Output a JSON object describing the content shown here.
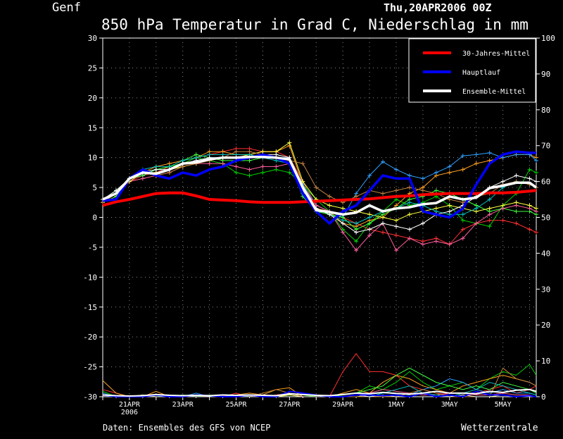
{
  "header": {
    "location": "Genf",
    "datetime": "Thu,20APR2006 00Z",
    "title": "850 hPa Temperatur in Grad C, Niederschlag in mm"
  },
  "footer": {
    "source": "Daten: Ensembles des GFS von NCEP",
    "brand": "Wetterzentrale"
  },
  "colors": {
    "background": "#000000",
    "axis": "#ffffff",
    "grid": "#8a8a8a",
    "climatology": "#ff0000",
    "main_run": "#0000ff",
    "ensemble_mean": "#ffffff",
    "members": [
      "#ff3030",
      "#00d000",
      "#ffa020",
      "#30a0ff",
      "#40ff40",
      "#ff60a0",
      "#ffff40",
      "#00c0c0",
      "#c08040",
      "#ffffff"
    ]
  },
  "chart_data": {
    "type": "line",
    "xlim": [
      20,
      36.25
    ],
    "ylim": [
      -30,
      30
    ],
    "y2lim": [
      0,
      100
    ],
    "yticks": [
      -30,
      -25,
      -20,
      -15,
      -10,
      -5,
      0,
      5,
      10,
      15,
      20,
      25,
      30
    ],
    "y2ticks": [
      0,
      10,
      20,
      30,
      40,
      50,
      60,
      70,
      80,
      90,
      100
    ],
    "xticks": [
      {
        "x": 21,
        "label": "21APR",
        "sub": "2006"
      },
      {
        "x": 23,
        "label": "23APR"
      },
      {
        "x": 25,
        "label": "25APR"
      },
      {
        "x": 27,
        "label": "27APR"
      },
      {
        "x": 29,
        "label": "29APR"
      },
      {
        "x": 31,
        "label": "1MAY"
      },
      {
        "x": 33,
        "label": "3MAY"
      },
      {
        "x": 35,
        "label": "5MAY"
      }
    ],
    "grid": true,
    "legend_position": "top-right",
    "legend": [
      {
        "label": "30-Jahres-Mittel",
        "color": "#ff0000"
      },
      {
        "label": "Hauptlauf",
        "color": "#0000ff"
      },
      {
        "label": "Ensemble-Mittel",
        "color": "#ffffff"
      }
    ],
    "temperature": {
      "x": [
        20,
        20.5,
        21,
        21.5,
        22,
        22.5,
        23,
        23.5,
        24,
        24.5,
        25,
        25.5,
        26,
        26.5,
        27,
        27.5,
        28,
        28.5,
        29,
        29.5,
        30,
        30.5,
        31,
        31.5,
        32,
        32.5,
        33,
        33.5,
        34,
        34.5,
        35,
        35.5,
        36,
        36.25
      ],
      "climatology": [
        2.0,
        2.6,
        3.0,
        3.5,
        4.0,
        4.1,
        4.1,
        3.6,
        3.0,
        2.9,
        2.8,
        2.6,
        2.5,
        2.5,
        2.5,
        2.6,
        2.7,
        2.8,
        2.9,
        3.0,
        3.1,
        3.3,
        3.5,
        3.6,
        3.8,
        3.9,
        4.0,
        4.0,
        4.0,
        4.1,
        4.1,
        4.2,
        4.4,
        4.5
      ],
      "main_run": [
        2.8,
        3.0,
        6.5,
        8.0,
        7.0,
        6.5,
        7.5,
        7.0,
        8.0,
        8.5,
        9.5,
        10.0,
        10.5,
        10.0,
        9.0,
        4.0,
        1.0,
        -1.0,
        1.0,
        2.0,
        4.5,
        7.0,
        6.5,
        6.5,
        1.0,
        0.5,
        0.0,
        1.5,
        5.5,
        9.0,
        10.5,
        11.0,
        10.8,
        10.8
      ],
      "ensemble_mean": [
        3.0,
        4.0,
        6.5,
        7.5,
        7.3,
        8.0,
        9.0,
        9.2,
        9.7,
        10.0,
        10.0,
        10.1,
        10.1,
        10.0,
        9.7,
        5.0,
        1.2,
        0.9,
        0.5,
        0.8,
        2.0,
        1.0,
        1.5,
        1.7,
        2.2,
        2.4,
        3.5,
        3.0,
        3.3,
        4.9,
        5.3,
        5.8,
        5.8,
        5.0
      ],
      "members": [
        [
          2.5,
          3.5,
          6.0,
          7.0,
          7.5,
          8.5,
          9.0,
          10.0,
          10.5,
          11.0,
          11.5,
          11.5,
          11.0,
          11.0,
          10.0,
          6.0,
          2.0,
          1.0,
          0.0,
          -1.0,
          -2.0,
          -2.5,
          -3.0,
          -3.5,
          -4.0,
          -3.5,
          -4.5,
          -2.0,
          -1.0,
          -0.5,
          -0.5,
          -1.0,
          -2.0,
          -2.5
        ],
        [
          3.0,
          4.5,
          6.5,
          7.5,
          8.0,
          8.5,
          9.0,
          10.0,
          9.5,
          9.0,
          7.5,
          7.0,
          7.5,
          8.0,
          7.5,
          5.5,
          3.0,
          1.0,
          -2.0,
          -4.0,
          -1.0,
          1.0,
          3.0,
          2.0,
          2.5,
          3.5,
          2.0,
          -0.5,
          -1.0,
          -1.5,
          2.0,
          4.0,
          8.0,
          7.5
        ],
        [
          2.5,
          4.0,
          6.5,
          7.5,
          8.5,
          9.0,
          9.5,
          10.0,
          11.0,
          11.0,
          10.5,
          10.5,
          11.0,
          11.0,
          12.0,
          5.5,
          1.5,
          1.0,
          -1.0,
          -1.5,
          -0.5,
          0.0,
          2.0,
          4.0,
          5.0,
          7.0,
          7.5,
          8.0,
          9.0,
          9.5,
          10.0,
          10.5,
          10.5,
          10.0
        ],
        [
          3.0,
          4.0,
          6.5,
          7.0,
          8.0,
          8.0,
          9.0,
          9.5,
          10.0,
          10.0,
          10.0,
          10.0,
          10.5,
          10.0,
          10.0,
          5.5,
          2.0,
          1.0,
          0.0,
          4.0,
          7.0,
          9.3,
          8.0,
          7.0,
          6.5,
          7.5,
          8.5,
          10.3,
          10.5,
          10.8,
          10.0,
          10.5,
          10.5,
          9.5
        ],
        [
          2.5,
          3.5,
          6.5,
          7.0,
          8.0,
          8.5,
          9.5,
          10.5,
          10.0,
          9.5,
          9.5,
          9.5,
          10.0,
          10.0,
          9.0,
          3.5,
          1.0,
          0.5,
          0.0,
          -2.0,
          -1.0,
          0.5,
          1.5,
          3.0,
          3.5,
          4.5,
          4.0,
          3.0,
          2.0,
          1.0,
          1.5,
          1.0,
          1.0,
          0.5
        ],
        [
          3.0,
          4.0,
          6.0,
          6.5,
          7.0,
          7.5,
          8.5,
          9.0,
          9.0,
          9.0,
          8.5,
          8.0,
          8.5,
          8.5,
          9.0,
          5.0,
          2.0,
          1.0,
          -2.5,
          -5.5,
          -3.0,
          -1.0,
          -5.5,
          -3.5,
          -4.5,
          -4.0,
          -4.5,
          -3.5,
          -1.0,
          0.5,
          1.5,
          2.0,
          1.5,
          1.0
        ],
        [
          2.5,
          4.0,
          6.0,
          7.5,
          7.5,
          8.0,
          8.5,
          9.0,
          9.5,
          10.0,
          10.0,
          10.5,
          11.0,
          11.0,
          12.5,
          6.0,
          3.0,
          2.0,
          1.5,
          1.0,
          0.5,
          0.0,
          -0.5,
          0.5,
          1.0,
          1.5,
          2.0,
          1.5,
          1.0,
          1.5,
          2.0,
          2.5,
          2.0,
          1.5
        ],
        [
          3.0,
          4.0,
          6.5,
          8.0,
          8.5,
          8.5,
          9.5,
          10.0,
          10.5,
          10.5,
          10.5,
          10.5,
          10.0,
          9.5,
          9.0,
          4.0,
          1.5,
          0.5,
          -0.5,
          -1.0,
          0.0,
          1.0,
          1.5,
          2.5,
          2.0,
          1.0,
          0.5,
          0.5,
          1.5,
          3.0,
          5.0,
          6.0,
          5.5,
          5.0
        ],
        [
          2.5,
          4.0,
          6.5,
          7.5,
          7.0,
          7.5,
          8.5,
          9.0,
          9.5,
          10.0,
          11.0,
          11.0,
          10.5,
          10.0,
          9.5,
          9.0,
          5.0,
          3.5,
          2.5,
          3.5,
          4.5,
          4.0,
          4.5,
          5.0,
          4.5,
          4.0,
          3.0,
          2.5,
          3.5,
          4.0,
          5.5,
          6.0,
          5.5,
          5.0
        ],
        [
          3.0,
          4.5,
          6.5,
          7.5,
          8.0,
          8.0,
          9.0,
          9.5,
          10.0,
          10.0,
          10.0,
          10.0,
          10.5,
          10.5,
          10.0,
          4.5,
          1.5,
          0.5,
          -1.0,
          -2.5,
          -2.0,
          -1.0,
          -1.5,
          -2.0,
          -1.0,
          0.5,
          1.0,
          2.0,
          3.5,
          5.0,
          6.0,
          7.0,
          6.5,
          6.0
        ]
      ]
    },
    "precipitation": {
      "x": [
        20,
        20.5,
        21,
        21.5,
        22,
        22.5,
        23,
        23.5,
        24,
        24.5,
        25,
        25.5,
        26,
        26.5,
        27,
        27.5,
        28,
        28.5,
        29,
        29.5,
        30,
        30.5,
        31,
        31.5,
        32,
        32.5,
        33,
        33.5,
        34,
        34.5,
        35,
        35.5,
        36,
        36.25
      ],
      "main_run": [
        0.5,
        0,
        0,
        0,
        0.5,
        0,
        0,
        0.5,
        0.3,
        0,
        0,
        0.5,
        0,
        0,
        1.5,
        1.0,
        0.5,
        0,
        0,
        0.5,
        0.5,
        0.3,
        0.5,
        0,
        1.0,
        0,
        0.5,
        0,
        1.5,
        0.5,
        0.5,
        0,
        0.3,
        0
      ],
      "ensemble_mean": [
        0.5,
        0.3,
        0.2,
        0.3,
        0.6,
        0.4,
        0.3,
        0.4,
        0.3,
        0.5,
        0.4,
        0.5,
        0.4,
        0.3,
        0.8,
        0.6,
        0.4,
        0.3,
        0.6,
        1.0,
        0.8,
        1.2,
        0.9,
        0.7,
        1.0,
        1.5,
        1.0,
        1.0,
        0.8,
        1.5,
        1.2,
        1.8,
        2.0,
        1.5
      ],
      "members": [
        [
          2,
          1,
          0,
          0,
          0.5,
          0,
          0,
          0.5,
          0,
          0,
          1,
          0,
          0,
          0.5,
          1,
          0.5,
          0,
          0,
          7,
          12,
          7,
          7,
          6,
          3,
          2,
          1,
          0.5,
          0,
          1,
          2,
          3,
          1,
          2,
          3
        ],
        [
          1.5,
          0,
          0,
          0,
          0,
          0.5,
          0,
          0,
          0.5,
          0,
          0,
          0.5,
          0,
          0,
          1,
          0.5,
          0,
          0,
          0.5,
          1,
          3,
          2,
          4,
          7,
          4,
          2,
          3,
          4,
          2,
          5,
          7,
          6,
          9,
          6
        ],
        [
          4.5,
          1,
          0,
          0,
          1.5,
          0,
          0,
          0,
          0,
          0,
          0.5,
          1,
          0.5,
          2,
          2.5,
          0,
          0,
          0,
          1,
          2,
          1,
          4,
          6,
          5,
          3,
          2,
          1,
          3,
          4,
          5,
          6,
          5,
          4,
          3
        ],
        [
          1,
          0,
          0,
          0.5,
          0,
          0,
          0,
          1,
          0,
          0,
          0,
          0.5,
          0,
          0,
          0.5,
          0,
          0,
          0,
          0,
          0.5,
          0,
          1,
          1,
          0.5,
          2,
          3,
          5,
          4,
          2,
          1,
          2,
          1,
          1,
          0.5
        ],
        [
          0.5,
          0,
          0,
          0,
          0,
          0,
          0.5,
          0,
          0,
          0,
          0,
          0,
          0,
          0,
          0,
          0,
          0,
          0,
          0.5,
          1,
          2,
          3,
          6,
          8,
          6,
          4,
          3,
          2,
          3,
          2,
          4,
          3,
          2,
          1
        ],
        [
          0,
          0,
          0,
          0,
          0,
          0,
          0,
          0,
          0,
          0,
          0,
          0,
          0,
          0,
          0,
          0,
          0,
          0,
          0,
          0.5,
          1,
          2,
          1.5,
          1,
          0.5,
          0.5,
          1,
          1,
          0.5,
          0.5,
          1,
          0.5,
          0.5,
          0
        ],
        [
          0,
          0,
          0,
          0.5,
          0,
          0,
          0,
          0,
          0,
          0,
          0,
          0,
          0,
          0,
          0.5,
          0,
          0,
          0,
          0,
          0,
          0.5,
          0,
          0.5,
          0,
          0,
          0,
          0.5,
          0,
          0,
          0,
          0.5,
          0,
          0,
          0
        ],
        [
          0,
          0,
          0,
          0,
          0,
          0,
          0,
          0,
          0,
          0,
          0.5,
          0,
          0,
          0,
          0,
          0,
          0,
          0,
          0,
          0,
          0,
          1,
          2,
          3,
          1,
          0.5,
          0,
          1,
          2,
          4,
          3,
          2,
          1,
          0.5
        ],
        [
          0,
          0,
          0,
          0,
          0,
          0,
          0,
          0,
          0,
          0,
          0,
          0,
          1,
          2,
          1,
          0,
          0,
          0,
          0,
          0,
          0,
          0,
          0,
          1,
          2,
          1,
          0,
          0,
          0,
          0,
          8,
          5,
          4,
          3
        ],
        [
          0,
          0,
          0,
          0,
          0,
          0,
          0,
          0,
          0,
          0,
          0,
          0,
          0,
          0,
          0,
          0,
          0,
          0,
          0,
          0.5,
          0,
          0.5,
          0,
          0,
          0,
          0,
          0,
          0.5,
          0,
          0,
          0,
          0,
          0,
          0
        ]
      ]
    }
  }
}
